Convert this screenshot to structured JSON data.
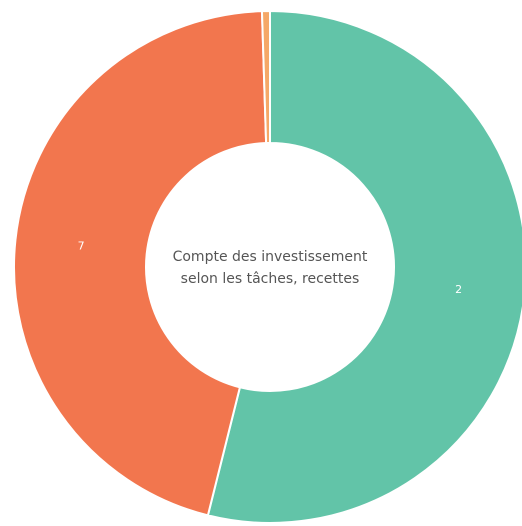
{
  "chart_data": {
    "type": "donut",
    "center_text": [
      "Compte des investissement",
      "selon les tâches, recettes"
    ],
    "categories": [
      "2",
      "7",
      null
    ],
    "values": [
      53.9,
      45.6,
      0.5
    ],
    "colors": [
      "#62c4a8",
      "#f2764e",
      "#f5a868"
    ],
    "start_angle": 0,
    "direction": "clockwise"
  }
}
